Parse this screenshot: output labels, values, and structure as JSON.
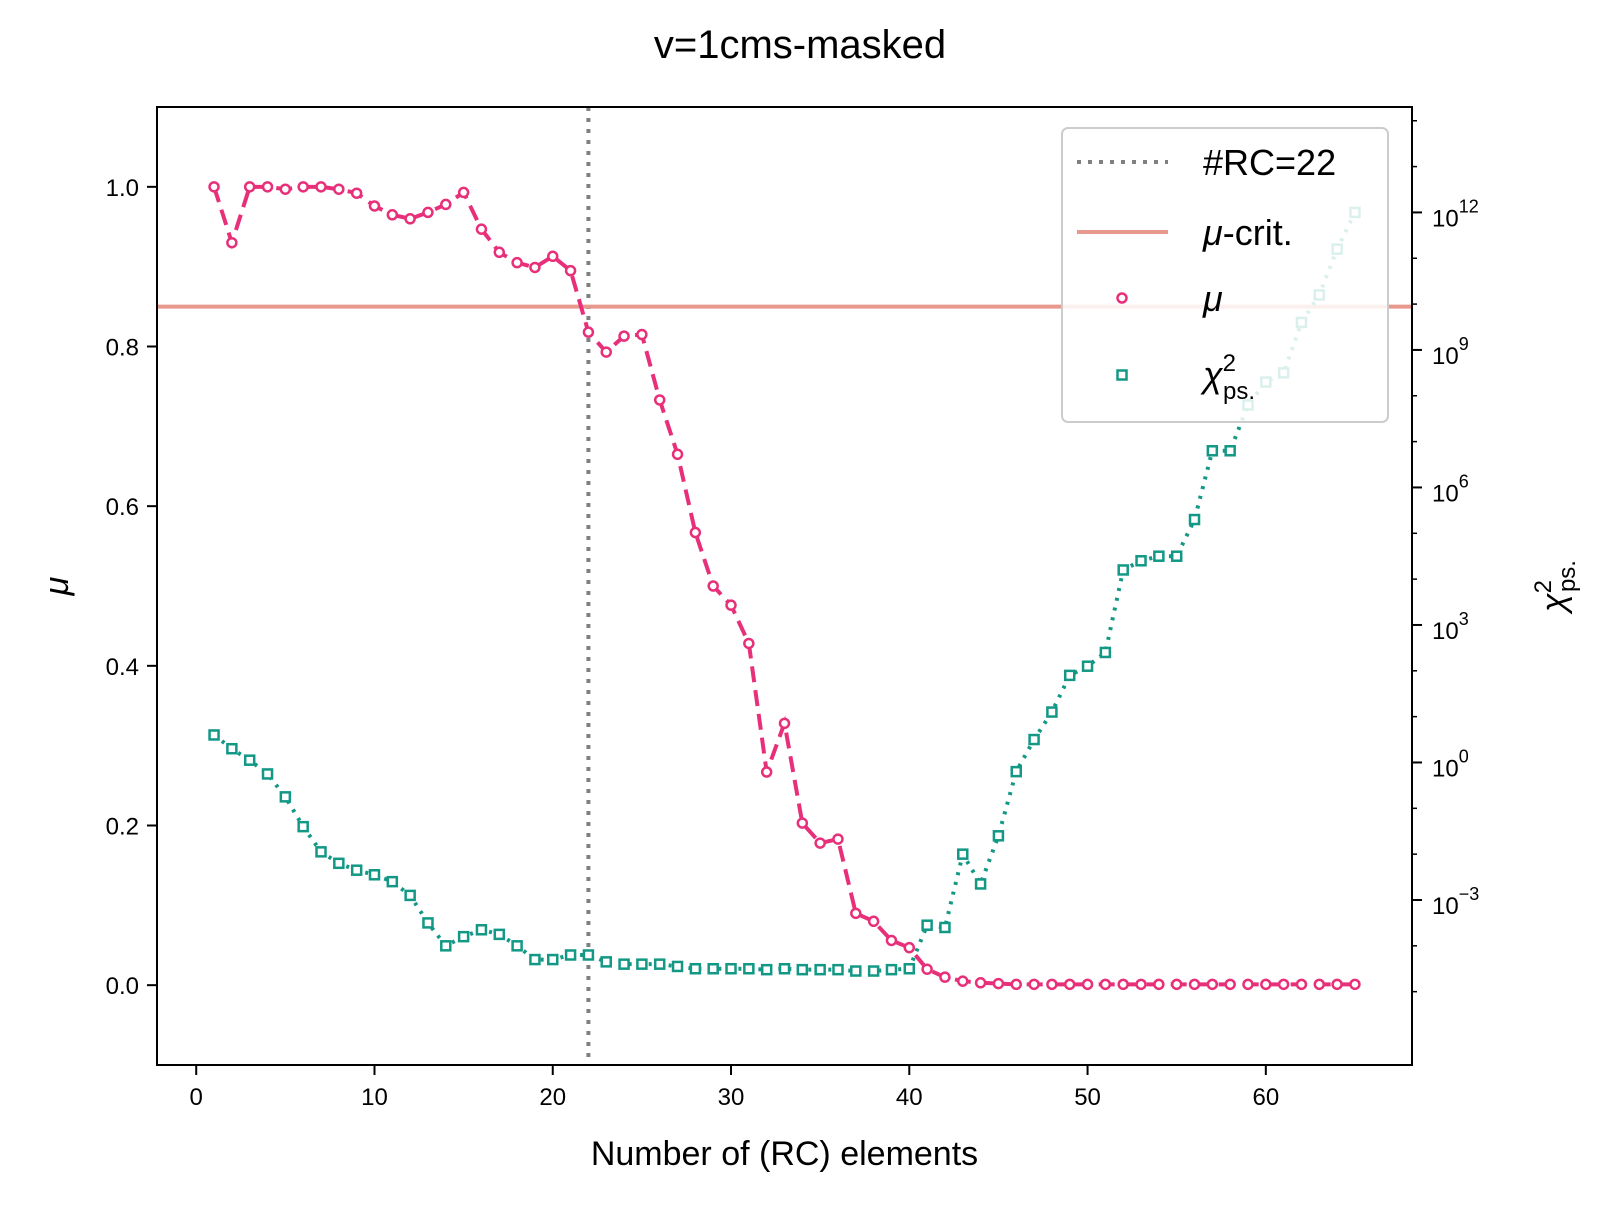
{
  "chart_data": {
    "type": "line",
    "title": "v=1cms-masked",
    "xlabel": "Number of (RC) elements",
    "ylabel": "μ",
    "y2label": "χ²ps.",
    "xlim": [
      -2.2,
      68.2
    ],
    "ylim": [
      -0.1,
      1.1
    ],
    "y2_scale": "log",
    "y2_exponent_range": [
      -6.6,
      14.3
    ],
    "xticks": [
      "0",
      "10",
      "20",
      "30",
      "40",
      "50",
      "60"
    ],
    "yticks": [
      "0.0",
      "0.2",
      "0.4",
      "0.6",
      "0.8",
      "1.0"
    ],
    "y2ticks": [
      {
        "base": "10",
        "exp": "12"
      },
      {
        "base": "10",
        "exp": "9"
      },
      {
        "base": "10",
        "exp": "6"
      },
      {
        "base": "10",
        "exp": "3"
      },
      {
        "base": "10",
        "exp": "0"
      },
      {
        "base": "10",
        "exp": "−3"
      }
    ],
    "vline": {
      "x": 22,
      "label": "#RC=22",
      "color": "#808080"
    },
    "hline": {
      "y": 0.85,
      "label": "μ-crit.",
      "color": "#e8998d"
    },
    "legend": {
      "placement": "upper right"
    },
    "series": [
      {
        "name": "μ",
        "axis": "left",
        "color": "#e8307a",
        "x": [
          1,
          2,
          3,
          4,
          5,
          6,
          7,
          8,
          9,
          10,
          11,
          12,
          13,
          14,
          15,
          16,
          17,
          18,
          19,
          20,
          21,
          22,
          23,
          24,
          25,
          26,
          27,
          28,
          29,
          30,
          31,
          32,
          33,
          34,
          35,
          36,
          37,
          38,
          39,
          40,
          41,
          42,
          43,
          44,
          45,
          46,
          47,
          48,
          49,
          50,
          51,
          52,
          53,
          54,
          55,
          56,
          57,
          58,
          59,
          60,
          61,
          62,
          63,
          64,
          65
        ],
        "y": [
          1.0,
          0.93,
          1.0,
          1.0,
          0.997,
          1.0,
          1.0,
          0.997,
          0.992,
          0.976,
          0.965,
          0.96,
          0.968,
          0.978,
          0.993,
          0.947,
          0.918,
          0.905,
          0.899,
          0.913,
          0.895,
          0.818,
          0.793,
          0.813,
          0.815,
          0.733,
          0.665,
          0.567,
          0.5,
          0.476,
          0.428,
          0.267,
          0.328,
          0.203,
          0.178,
          0.183,
          0.09,
          0.08,
          0.056,
          0.047,
          0.02,
          0.01,
          0.005,
          0.003,
          0.002,
          0.001,
          0.001,
          0.001,
          0.001,
          0.001,
          0.001,
          0.001,
          0.001,
          0.001,
          0.001,
          0.001,
          0.001,
          0.001,
          0.001,
          0.001,
          0.001,
          0.001,
          0.001,
          0.001,
          0.001
        ]
      },
      {
        "name": "χ²ps.",
        "axis": "right",
        "color": "#129885",
        "x": [
          1,
          2,
          3,
          4,
          5,
          6,
          7,
          8,
          9,
          10,
          11,
          12,
          13,
          14,
          15,
          16,
          17,
          18,
          19,
          20,
          21,
          22,
          23,
          24,
          25,
          26,
          27,
          28,
          29,
          30,
          31,
          32,
          33,
          34,
          35,
          36,
          37,
          38,
          39,
          40,
          41,
          42,
          43,
          44,
          45,
          46,
          47,
          48,
          49,
          50,
          51,
          52,
          53,
          54,
          55,
          56,
          57,
          58,
          59,
          60,
          61,
          62,
          63,
          64,
          65
        ],
        "exp": [
          0.6,
          0.3,
          0.05,
          -0.25,
          -0.75,
          -1.4,
          -1.95,
          -2.2,
          -2.35,
          -2.45,
          -2.6,
          -2.9,
          -3.5,
          -4.0,
          -3.8,
          -3.65,
          -3.75,
          -4.0,
          -4.3,
          -4.3,
          -4.2,
          -4.2,
          -4.35,
          -4.4,
          -4.4,
          -4.4,
          -4.45,
          -4.5,
          -4.5,
          -4.5,
          -4.5,
          -4.52,
          -4.5,
          -4.52,
          -4.52,
          -4.52,
          -4.55,
          -4.55,
          -4.52,
          -4.5,
          -3.55,
          -3.6,
          -2.0,
          -2.65,
          -1.6,
          -0.2,
          0.5,
          1.1,
          1.9,
          2.1,
          2.4,
          4.2,
          4.4,
          4.5,
          4.5,
          5.3,
          6.8,
          6.8,
          7.8,
          8.3,
          8.5,
          9.6,
          10.2,
          11.2,
          12.0
        ]
      }
    ]
  }
}
